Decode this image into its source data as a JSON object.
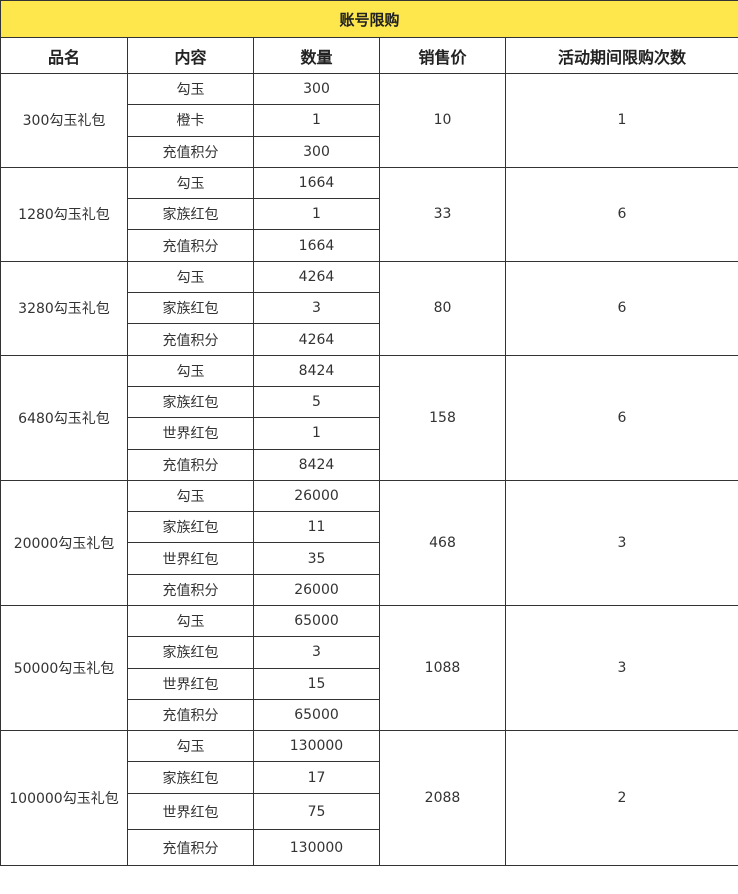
{
  "title": "账号限购",
  "headers": [
    "品名",
    "内容",
    "数量",
    "销售价",
    "活动期间限购次数"
  ],
  "packages": [
    {
      "name": "300勾玉礼包",
      "price": "10",
      "limit": "1",
      "items": [
        {
          "content": "勾玉",
          "qty": "300"
        },
        {
          "content": "橙卡",
          "qty": "1"
        },
        {
          "content": "充值积分",
          "qty": "300"
        }
      ]
    },
    {
      "name": "1280勾玉礼包",
      "price": "33",
      "limit": "6",
      "items": [
        {
          "content": "勾玉",
          "qty": "1664"
        },
        {
          "content": "家族红包",
          "qty": "1"
        },
        {
          "content": "充值积分",
          "qty": "1664"
        }
      ]
    },
    {
      "name": "3280勾玉礼包",
      "price": "80",
      "limit": "6",
      "items": [
        {
          "content": "勾玉",
          "qty": "4264"
        },
        {
          "content": "家族红包",
          "qty": "3"
        },
        {
          "content": "充值积分",
          "qty": "4264"
        }
      ]
    },
    {
      "name": "6480勾玉礼包",
      "price": "158",
      "limit": "6",
      "items": [
        {
          "content": "勾玉",
          "qty": "8424"
        },
        {
          "content": "家族红包",
          "qty": "5"
        },
        {
          "content": "世界红包",
          "qty": "1"
        },
        {
          "content": "充值积分",
          "qty": "8424"
        }
      ]
    },
    {
      "name": "20000勾玉礼包",
      "price": "468",
      "limit": "3",
      "items": [
        {
          "content": "勾玉",
          "qty": "26000"
        },
        {
          "content": "家族红包",
          "qty": "11"
        },
        {
          "content": "世界红包",
          "qty": "35"
        },
        {
          "content": "充值积分",
          "qty": "26000"
        }
      ]
    },
    {
      "name": "50000勾玉礼包",
      "price": "1088",
      "limit": "3",
      "items": [
        {
          "content": "勾玉",
          "qty": "65000"
        },
        {
          "content": "家族红包",
          "qty": "3"
        },
        {
          "content": "世界红包",
          "qty": "15"
        },
        {
          "content": "充值积分",
          "qty": "65000"
        }
      ]
    },
    {
      "name": "100000勾玉礼包",
      "price": "2088",
      "limit": "2",
      "items": [
        {
          "content": "勾玉",
          "qty": "130000"
        },
        {
          "content": "家族红包",
          "qty": "17"
        },
        {
          "content": "世界红包",
          "qty": "75"
        },
        {
          "content": "充值积分",
          "qty": "130000"
        }
      ]
    }
  ]
}
